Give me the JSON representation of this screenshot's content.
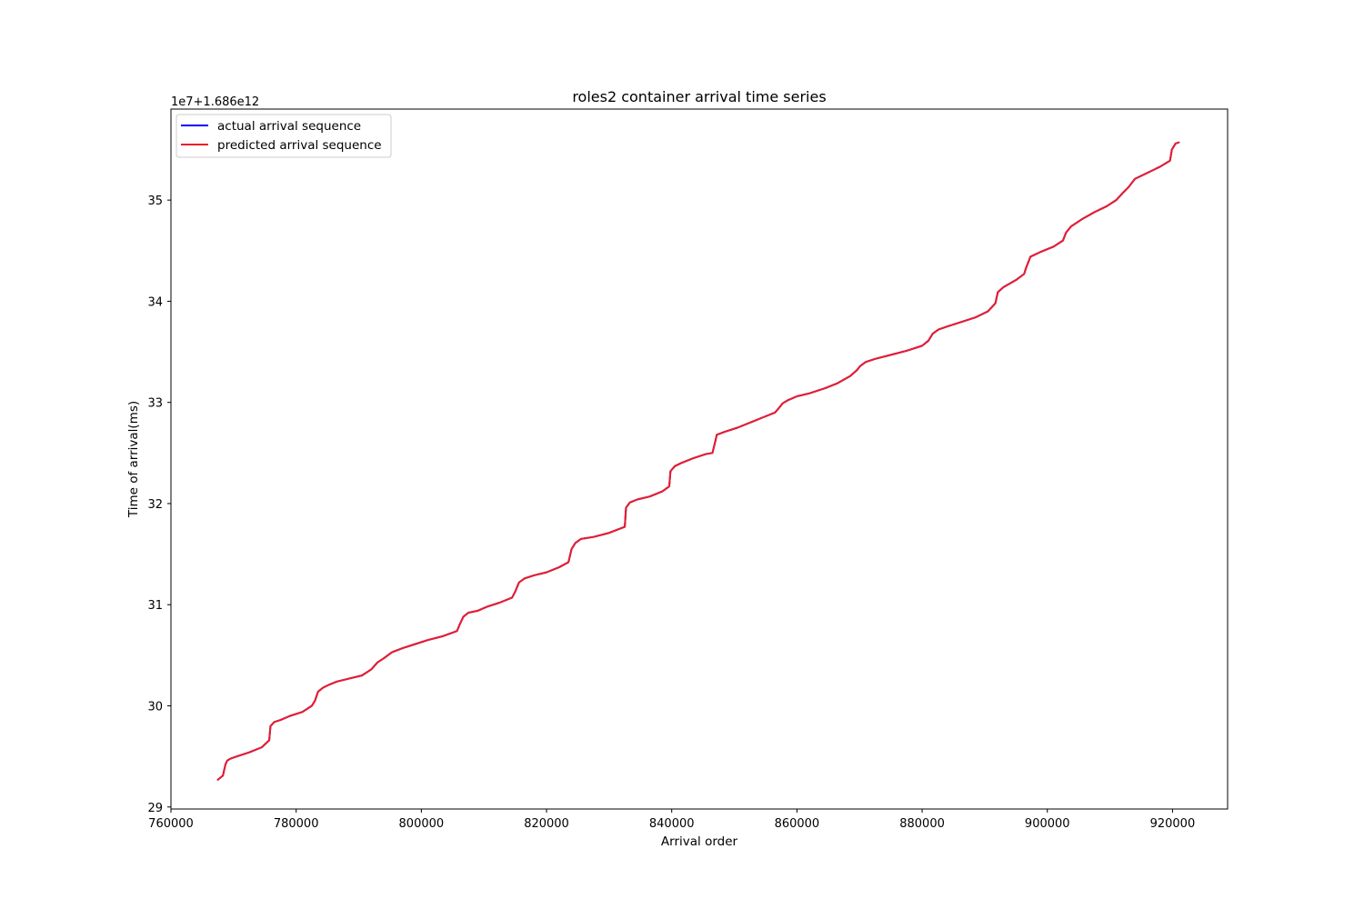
{
  "chart_data": {
    "type": "line",
    "title": "roles2 container arrival time series",
    "xlabel": "Arrival order",
    "ylabel": "Time of arrival(ms)",
    "offset_label": "1e7+1.686e12",
    "xlim": [
      760000,
      928800
    ],
    "ylim": [
      28.98,
      35.9
    ],
    "xticks": [
      760000,
      780000,
      800000,
      820000,
      840000,
      860000,
      880000,
      900000,
      920000
    ],
    "xtick_labels": [
      "760000",
      "780000",
      "800000",
      "820000",
      "840000",
      "860000",
      "880000",
      "900000",
      "920000"
    ],
    "yticks": [
      29,
      30,
      31,
      32,
      33,
      34,
      35
    ],
    "ytick_labels": [
      "29",
      "30",
      "31",
      "32",
      "33",
      "34",
      "35"
    ],
    "grid": false,
    "legend_position": "upper-left",
    "series": [
      {
        "name": "actual arrival sequence",
        "color": "#0000ff",
        "x": [
          767500,
          768300,
          768700,
          769000,
          769600,
          770500,
          772500,
          774500,
          775700,
          775900,
          776500,
          777500,
          779000,
          781000,
          782500,
          783000,
          783500,
          784300,
          785300,
          786500,
          788500,
          790500,
          792000,
          793000,
          794000,
          795300,
          797000,
          799000,
          801000,
          803500,
          805700,
          806100,
          806700,
          807500,
          809000,
          810500,
          812500,
          814500,
          815000,
          815600,
          816500,
          818000,
          820000,
          822000,
          823500,
          824000,
          824600,
          825500,
          827500,
          830000,
          832500,
          832700,
          833300,
          834500,
          836500,
          838500,
          839600,
          839800,
          840500,
          841500,
          843500,
          845500,
          846500,
          846900,
          847200,
          848500,
          850500,
          852500,
          854500,
          856500,
          857200,
          857700,
          858500,
          860000,
          862000,
          864500,
          866500,
          868500,
          869600,
          870100,
          871000,
          872500,
          875000,
          877500,
          880000,
          881000,
          881700,
          882600,
          884000,
          886500,
          888500,
          890500,
          891700,
          892100,
          893000,
          895000,
          896300,
          896600,
          897300,
          899000,
          901000,
          902500,
          903000,
          903800,
          905500,
          907500,
          909500,
          911000,
          912200,
          913000,
          914000,
          916000,
          918000,
          919600,
          919900,
          920500,
          921000
        ],
        "y": [
          29.27,
          29.31,
          29.42,
          29.46,
          29.48,
          29.5,
          29.54,
          29.59,
          29.66,
          29.8,
          29.84,
          29.86,
          29.9,
          29.94,
          30.0,
          30.05,
          30.14,
          30.18,
          30.21,
          30.24,
          30.27,
          30.3,
          30.36,
          30.43,
          30.47,
          30.53,
          30.57,
          30.61,
          30.65,
          30.69,
          30.74,
          30.8,
          30.88,
          30.92,
          30.94,
          30.98,
          31.02,
          31.07,
          31.13,
          31.22,
          31.26,
          31.29,
          31.32,
          31.37,
          31.42,
          31.55,
          31.61,
          31.65,
          31.67,
          31.71,
          31.77,
          31.96,
          32.01,
          32.04,
          32.07,
          32.12,
          32.17,
          32.32,
          32.37,
          32.4,
          32.45,
          32.49,
          32.5,
          32.6,
          32.68,
          32.71,
          32.75,
          32.8,
          32.85,
          32.9,
          32.95,
          32.99,
          33.02,
          33.06,
          33.09,
          33.14,
          33.19,
          33.26,
          33.32,
          33.36,
          33.4,
          33.43,
          33.47,
          33.51,
          33.56,
          33.61,
          33.68,
          33.72,
          33.75,
          33.8,
          33.84,
          33.9,
          33.98,
          34.09,
          34.14,
          34.21,
          34.27,
          34.33,
          34.44,
          34.49,
          34.54,
          34.6,
          34.68,
          34.74,
          34.81,
          34.88,
          34.94,
          35.0,
          35.08,
          35.13,
          35.21,
          35.27,
          35.33,
          35.39,
          35.5,
          35.56,
          35.57
        ]
      },
      {
        "name": "predicted arrival sequence",
        "color": "#ee1c25",
        "x": [
          767500,
          768300,
          768700,
          769000,
          769600,
          770500,
          772500,
          774500,
          775700,
          775900,
          776500,
          777500,
          779000,
          781000,
          782500,
          783000,
          783500,
          784300,
          785300,
          786500,
          788500,
          790500,
          792000,
          793000,
          794000,
          795300,
          797000,
          799000,
          801000,
          803500,
          805700,
          806100,
          806700,
          807500,
          809000,
          810500,
          812500,
          814500,
          815000,
          815600,
          816500,
          818000,
          820000,
          822000,
          823500,
          824000,
          824600,
          825500,
          827500,
          830000,
          832500,
          832700,
          833300,
          834500,
          836500,
          838500,
          839600,
          839800,
          840500,
          841500,
          843500,
          845500,
          846500,
          846900,
          847200,
          848500,
          850500,
          852500,
          854500,
          856500,
          857200,
          857700,
          858500,
          860000,
          862000,
          864500,
          866500,
          868500,
          869600,
          870100,
          871000,
          872500,
          875000,
          877500,
          880000,
          881000,
          881700,
          882600,
          884000,
          886500,
          888500,
          890500,
          891700,
          892100,
          893000,
          895000,
          896300,
          896600,
          897300,
          899000,
          901000,
          902500,
          903000,
          903800,
          905500,
          907500,
          909500,
          911000,
          912200,
          913000,
          914000,
          916000,
          918000,
          919600,
          919900,
          920500,
          921000
        ],
        "y": [
          29.27,
          29.31,
          29.42,
          29.46,
          29.48,
          29.5,
          29.54,
          29.59,
          29.66,
          29.8,
          29.84,
          29.86,
          29.9,
          29.94,
          30.0,
          30.05,
          30.14,
          30.18,
          30.21,
          30.24,
          30.27,
          30.3,
          30.36,
          30.43,
          30.47,
          30.53,
          30.57,
          30.61,
          30.65,
          30.69,
          30.74,
          30.8,
          30.88,
          30.92,
          30.94,
          30.98,
          31.02,
          31.07,
          31.13,
          31.22,
          31.26,
          31.29,
          31.32,
          31.37,
          31.42,
          31.55,
          31.61,
          31.65,
          31.67,
          31.71,
          31.77,
          31.96,
          32.01,
          32.04,
          32.07,
          32.12,
          32.17,
          32.32,
          32.37,
          32.4,
          32.45,
          32.49,
          32.5,
          32.6,
          32.68,
          32.71,
          32.75,
          32.8,
          32.85,
          32.9,
          32.95,
          32.99,
          33.02,
          33.06,
          33.09,
          33.14,
          33.19,
          33.26,
          33.32,
          33.36,
          33.4,
          33.43,
          33.47,
          33.51,
          33.56,
          33.61,
          33.68,
          33.72,
          33.75,
          33.8,
          33.84,
          33.9,
          33.98,
          34.09,
          34.14,
          34.21,
          34.27,
          34.33,
          34.44,
          34.49,
          34.54,
          34.6,
          34.68,
          34.74,
          34.81,
          34.88,
          34.94,
          35.0,
          35.08,
          35.13,
          35.21,
          35.27,
          35.33,
          35.39,
          35.5,
          35.56,
          35.57
        ]
      }
    ]
  }
}
